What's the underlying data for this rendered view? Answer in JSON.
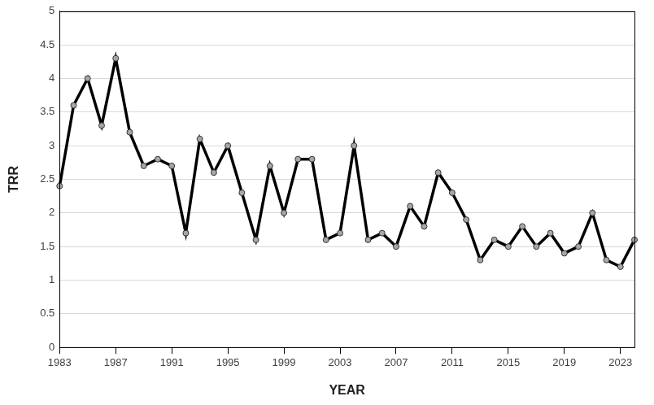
{
  "chart_data": {
    "type": "line",
    "xlabel": "YEAR",
    "ylabel": "TRR",
    "x": [
      1983,
      1984,
      1985,
      1986,
      1987,
      1988,
      1989,
      1990,
      1991,
      1992,
      1993,
      1994,
      1995,
      1996,
      1997,
      1998,
      1999,
      2000,
      2001,
      2002,
      2003,
      2004,
      2005,
      2006,
      2007,
      2008,
      2009,
      2010,
      2011,
      2012,
      2013,
      2014,
      2015,
      2016,
      2017,
      2018,
      2019,
      2020,
      2021,
      2022,
      2023,
      2024
    ],
    "values": [
      2.4,
      3.6,
      4.0,
      3.3,
      4.3,
      3.2,
      2.7,
      2.8,
      2.7,
      1.7,
      3.1,
      2.6,
      3.0,
      2.3,
      1.6,
      2.7,
      2.0,
      2.8,
      2.8,
      1.6,
      1.7,
      3.0,
      1.6,
      1.7,
      1.5,
      2.1,
      1.8,
      2.6,
      2.3,
      1.9,
      1.3,
      1.6,
      1.5,
      1.8,
      1.5,
      1.7,
      1.4,
      1.5,
      2.0,
      1.3,
      1.2,
      1.6
    ],
    "color": "#000000",
    "marker": "circle",
    "xlim": [
      1983,
      2024
    ],
    "xticks": [
      1983,
      1987,
      1991,
      1995,
      1999,
      2003,
      2007,
      2011,
      2015,
      2019,
      2023
    ],
    "ylim": [
      0,
      5
    ],
    "yticks": [
      0,
      0.5,
      1,
      1.5,
      2,
      2.5,
      3,
      3.5,
      4,
      4.5,
      5
    ],
    "grid": true
  }
}
